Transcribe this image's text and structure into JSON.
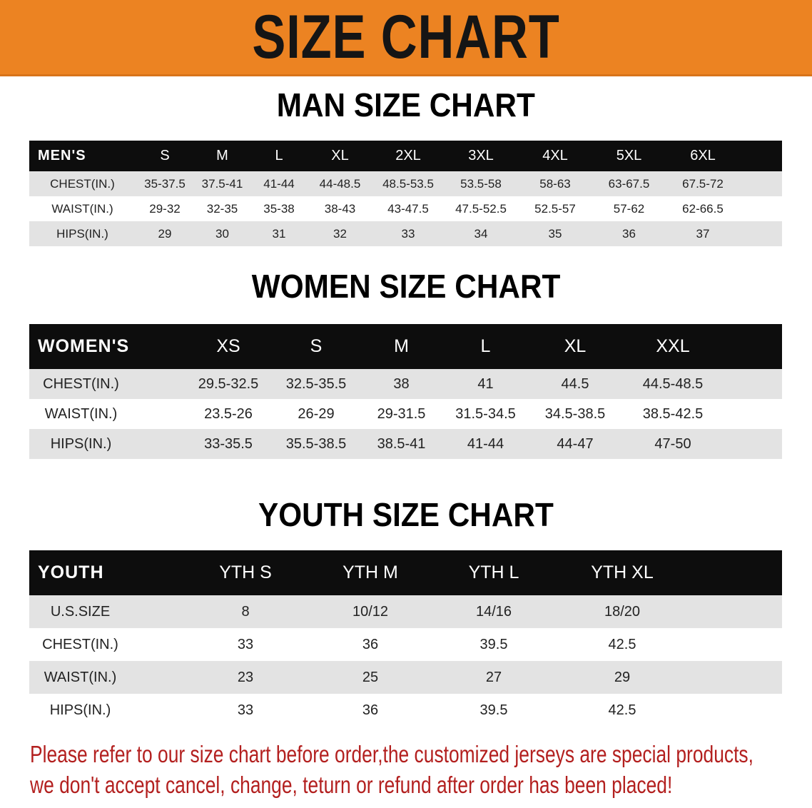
{
  "banner": {
    "title": "SIZE CHART",
    "color": "#ec8322"
  },
  "men": {
    "title": "MAN SIZE CHART",
    "header": [
      "MEN'S",
      "S",
      "M",
      "L",
      "XL",
      "2XL",
      "3XL",
      "4XL",
      "5XL",
      "6XL"
    ],
    "rows": [
      [
        "CHEST(IN.)",
        "35-37.5",
        "37.5-41",
        "41-44",
        "44-48.5",
        "48.5-53.5",
        "53.5-58",
        "58-63",
        "63-67.5",
        "67.5-72"
      ],
      [
        "WAIST(IN.)",
        "29-32",
        "32-35",
        "35-38",
        "38-43",
        "43-47.5",
        "47.5-52.5",
        "52.5-57",
        "57-62",
        "62-66.5"
      ],
      [
        "HIPS(IN.)",
        "29",
        "30",
        "31",
        "32",
        "33",
        "34",
        "35",
        "36",
        "37"
      ]
    ]
  },
  "women": {
    "title": "WOMEN SIZE CHART",
    "header": [
      "WOMEN'S",
      "XS",
      "S",
      "M",
      "L",
      "XL",
      "XXL"
    ],
    "rows": [
      [
        "CHEST(IN.)",
        "29.5-32.5",
        "32.5-35.5",
        "38",
        "41",
        "44.5",
        "44.5-48.5"
      ],
      [
        "WAIST(IN.)",
        "23.5-26",
        "26-29",
        "29-31.5",
        "31.5-34.5",
        "34.5-38.5",
        "38.5-42.5"
      ],
      [
        "HIPS(IN.)",
        "33-35.5",
        "35.5-38.5",
        "38.5-41",
        "41-44",
        "44-47",
        "47-50"
      ]
    ]
  },
  "youth": {
    "title": "YOUTH SIZE CHART",
    "header": [
      "YOUTH",
      "YTH S",
      "YTH M",
      "YTH L",
      "YTH XL"
    ],
    "rows": [
      [
        "U.S.SIZE",
        "8",
        "10/12",
        "14/16",
        "18/20"
      ],
      [
        "CHEST(IN.)",
        "33",
        "36",
        "39.5",
        "42.5"
      ],
      [
        "WAIST(IN.)",
        "23",
        "25",
        "27",
        "29"
      ],
      [
        "HIPS(IN.)",
        "33",
        "36",
        "39.5",
        "42.5"
      ]
    ]
  },
  "notice": {
    "line1": "Please refer to our size chart before order,the customized jerseys are special products,",
    "line2": "we don't accept cancel, change, teturn or refund after order has been placed!",
    "color": "#b3201f"
  }
}
